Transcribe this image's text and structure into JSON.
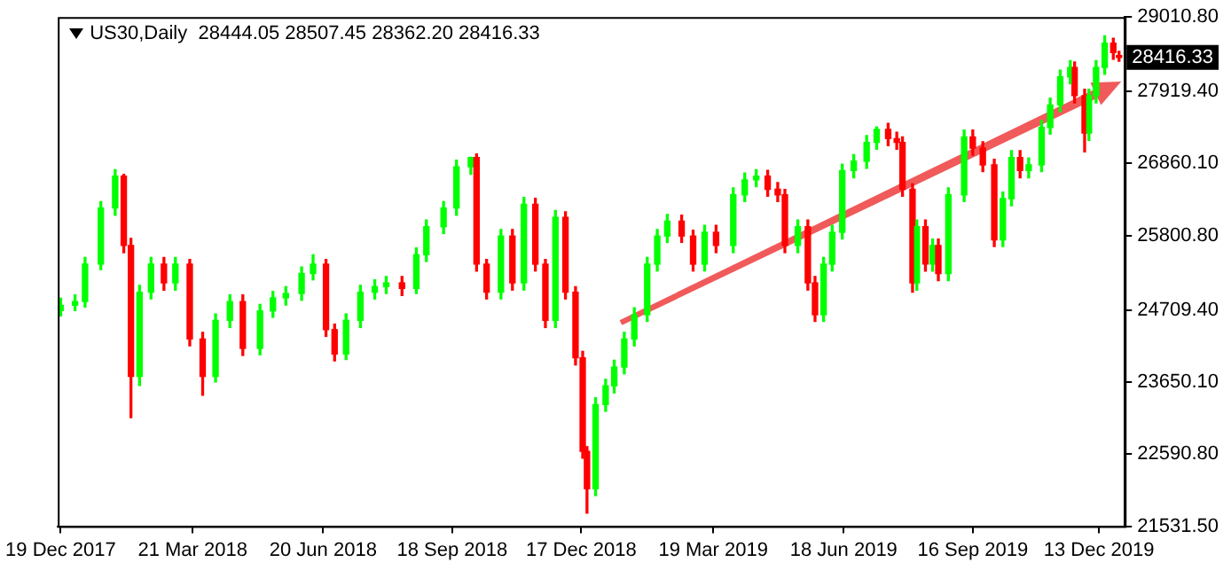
{
  "chart_data": {
    "type": "candlestick",
    "title": "US30,Daily  28444.05 28507.45 28362.20 28416.33",
    "x": [
      "2017-12-19",
      "2017-12-29",
      "2018-01-05",
      "2018-01-16",
      "2018-01-26",
      "2018-02-01",
      "2018-02-06",
      "2018-02-12",
      "2018-02-20",
      "2018-03-01",
      "2018-03-09",
      "2018-03-19",
      "2018-03-28",
      "2018-04-06",
      "2018-04-16",
      "2018-04-25",
      "2018-05-07",
      "2018-05-16",
      "2018-05-25",
      "2018-06-05",
      "2018-06-13",
      "2018-06-22",
      "2018-06-28",
      "2018-07-06",
      "2018-07-16",
      "2018-07-26",
      "2018-08-03",
      "2018-08-14",
      "2018-08-24",
      "2018-08-31",
      "2018-09-12",
      "2018-09-21",
      "2018-10-01",
      "2018-10-05",
      "2018-10-12",
      "2018-10-22",
      "2018-10-30",
      "2018-11-07",
      "2018-11-15",
      "2018-11-22",
      "2018-11-29",
      "2018-12-06",
      "2018-12-13",
      "2018-12-18",
      "2018-12-21",
      "2018-12-27",
      "2019-01-03",
      "2019-01-09",
      "2019-01-16",
      "2019-01-23",
      "2019-02-01",
      "2019-02-08",
      "2019-02-15",
      "2019-02-25",
      "2019-03-05",
      "2019-03-13",
      "2019-03-21",
      "2019-04-02",
      "2019-04-10",
      "2019-04-18",
      "2019-04-26",
      "2019-05-03",
      "2019-05-08",
      "2019-05-17",
      "2019-05-24",
      "2019-05-29",
      "2019-06-04",
      "2019-06-10",
      "2019-06-17",
      "2019-06-25",
      "2019-07-04",
      "2019-07-11",
      "2019-07-19",
      "2019-07-25",
      "2019-07-29",
      "2019-08-05",
      "2019-08-08",
      "2019-08-14",
      "2019-08-19",
      "2019-08-23",
      "2019-08-30",
      "2019-09-10",
      "2019-09-16",
      "2019-09-23",
      "2019-10-01",
      "2019-10-07",
      "2019-10-13",
      "2019-10-19",
      "2019-10-25",
      "2019-11-03",
      "2019-11-09",
      "2019-11-16",
      "2019-11-23",
      "2019-11-26",
      "2019-12-03",
      "2019-12-06",
      "2019-12-11",
      "2019-12-17",
      "2019-12-23",
      "2019-12-27"
    ],
    "ohlc": [
      [
        24700,
        24880,
        24620,
        24776
      ],
      [
        24776,
        24930,
        24700,
        24831
      ],
      [
        24831,
        25480,
        24750,
        25381
      ],
      [
        25381,
        26300,
        25300,
        26206
      ],
      [
        26206,
        26770,
        26100,
        26674
      ],
      [
        26674,
        26700,
        25550,
        25656
      ],
      [
        25656,
        25760,
        23126,
        23731
      ],
      [
        23731,
        25070,
        23600,
        24969
      ],
      [
        24969,
        25480,
        24870,
        25381
      ],
      [
        25381,
        25480,
        25000,
        25106
      ],
      [
        25106,
        25480,
        25000,
        25381
      ],
      [
        25381,
        25450,
        24180,
        24281
      ],
      [
        24281,
        24380,
        23456,
        23731
      ],
      [
        23731,
        24650,
        23650,
        24556
      ],
      [
        24556,
        24930,
        24450,
        24831
      ],
      [
        24831,
        24930,
        24040,
        24144
      ],
      [
        24144,
        24790,
        24050,
        24694
      ],
      [
        24694,
        24980,
        24600,
        24886
      ],
      [
        24886,
        25050,
        24780,
        24950
      ],
      [
        24950,
        25340,
        24850,
        25244
      ],
      [
        25244,
        25519,
        25150,
        25381
      ],
      [
        25381,
        25450,
        24320,
        24419
      ],
      [
        24419,
        24500,
        23960,
        24061
      ],
      [
        24061,
        24650,
        23980,
        24556
      ],
      [
        24556,
        25070,
        24450,
        24969
      ],
      [
        24969,
        25150,
        24870,
        25051
      ],
      [
        25051,
        25200,
        24950,
        25106
      ],
      [
        25106,
        25200,
        24920,
        25024
      ],
      [
        25024,
        25620,
        24950,
        25519
      ],
      [
        25519,
        26030,
        25420,
        25931
      ],
      [
        25931,
        26300,
        25830,
        26206
      ],
      [
        26206,
        26910,
        26100,
        26811
      ],
      [
        26811,
        26951,
        26700,
        26949
      ],
      [
        26949,
        27000,
        25280,
        25381
      ],
      [
        25381,
        25450,
        24870,
        24969
      ],
      [
        24969,
        25890,
        24870,
        25794
      ],
      [
        25794,
        25890,
        25000,
        25106
      ],
      [
        25106,
        26360,
        25000,
        26261
      ],
      [
        26261,
        26350,
        25280,
        25381
      ],
      [
        25381,
        25450,
        24450,
        24556
      ],
      [
        24556,
        26170,
        24450,
        26069
      ],
      [
        26069,
        26150,
        24870,
        24969
      ],
      [
        24969,
        25050,
        23900,
        24006
      ],
      [
        24006,
        24100,
        22530,
        22631
      ],
      [
        22631,
        22700,
        21724,
        22081
      ],
      [
        22081,
        23420,
        21980,
        23319
      ],
      [
        23319,
        23690,
        23220,
        23594
      ],
      [
        23594,
        23970,
        23490,
        23869
      ],
      [
        23869,
        24380,
        23770,
        24281
      ],
      [
        24281,
        24740,
        24180,
        24638
      ],
      [
        24638,
        25480,
        24540,
        25381
      ],
      [
        25381,
        25890,
        25280,
        25794
      ],
      [
        25794,
        26110,
        25700,
        26014
      ],
      [
        26014,
        26100,
        25700,
        25794
      ],
      [
        25794,
        25880,
        25280,
        25381
      ],
      [
        25381,
        25950,
        25280,
        25849
      ],
      [
        25849,
        25950,
        25550,
        25656
      ],
      [
        25656,
        26500,
        25550,
        26399
      ],
      [
        26399,
        26720,
        26300,
        26619
      ],
      [
        26619,
        26770,
        26520,
        26674
      ],
      [
        26674,
        26760,
        26380,
        26481
      ],
      [
        26481,
        26580,
        26300,
        26399
      ],
      [
        26399,
        26480,
        25550,
        25656
      ],
      [
        25656,
        26030,
        25550,
        25931
      ],
      [
        25931,
        26030,
        25000,
        25106
      ],
      [
        25106,
        25200,
        24540,
        24638
      ],
      [
        24638,
        25480,
        24540,
        25381
      ],
      [
        25381,
        25950,
        25280,
        25849
      ],
      [
        25849,
        26850,
        25750,
        26756
      ],
      [
        26756,
        26990,
        26650,
        26894
      ],
      [
        26894,
        27270,
        26790,
        27169
      ],
      [
        27169,
        27398,
        27070,
        27361
      ],
      [
        27361,
        27450,
        27120,
        27224
      ],
      [
        27224,
        27320,
        27070,
        27169
      ],
      [
        27169,
        27250,
        26380,
        26481
      ],
      [
        26481,
        26560,
        24969,
        25106
      ],
      [
        25106,
        26030,
        25000,
        25931
      ],
      [
        25931,
        26030,
        25280,
        25381
      ],
      [
        25381,
        25750,
        25280,
        25656
      ],
      [
        25656,
        25750,
        25140,
        25244
      ],
      [
        25244,
        26500,
        25140,
        26399
      ],
      [
        26399,
        27350,
        26300,
        27251
      ],
      [
        27251,
        27350,
        26980,
        27086
      ],
      [
        27086,
        27180,
        26740,
        26839
      ],
      [
        26839,
        26920,
        25640,
        25738
      ],
      [
        25738,
        26440,
        25640,
        26344
      ],
      [
        26344,
        27050,
        26240,
        26949
      ],
      [
        26949,
        27050,
        26650,
        26756
      ],
      [
        26756,
        26940,
        26650,
        26839
      ],
      [
        26839,
        27490,
        26740,
        27389
      ],
      [
        27389,
        27820,
        27290,
        27719
      ],
      [
        27719,
        28230,
        27620,
        28131
      ],
      [
        28131,
        28370,
        28030,
        28269
      ],
      [
        28269,
        28350,
        27750,
        27856
      ],
      [
        27856,
        27950,
        27031,
        27306
      ],
      [
        27306,
        27950,
        27200,
        27856
      ],
      [
        27856,
        28370,
        27750,
        28269
      ],
      [
        28269,
        28736,
        28170,
        28626
      ],
      [
        28626,
        28700,
        28390,
        28489
      ],
      [
        28444.05,
        28507.45,
        28362.2,
        28416.33
      ]
    ],
    "colors": [
      "#00ff00",
      "#00ff00",
      "#00ff00",
      "#00ff00",
      "#00ff00",
      "#ff0000",
      "#ff0000",
      "#00ff00",
      "#00ff00",
      "#ff0000",
      "#00ff00",
      "#ff0000",
      "#ff0000",
      "#00ff00",
      "#00ff00",
      "#ff0000",
      "#00ff00",
      "#00ff00",
      "#00ff00",
      "#00ff00",
      "#00ff00",
      "#ff0000",
      "#ff0000",
      "#00ff00",
      "#00ff00",
      "#00ff00",
      "#00ff00",
      "#ff0000",
      "#00ff00",
      "#00ff00",
      "#00ff00",
      "#00ff00",
      "#00ff00",
      "#ff0000",
      "#ff0000",
      "#00ff00",
      "#ff0000",
      "#00ff00",
      "#ff0000",
      "#ff0000",
      "#00ff00",
      "#ff0000",
      "#ff0000",
      "#ff0000",
      "#ff0000",
      "#00ff00",
      "#00ff00",
      "#00ff00",
      "#00ff00",
      "#00ff00",
      "#00ff00",
      "#00ff00",
      "#00ff00",
      "#ff0000",
      "#ff0000",
      "#00ff00",
      "#ff0000",
      "#00ff00",
      "#00ff00",
      "#00ff00",
      "#ff0000",
      "#ff0000",
      "#ff0000",
      "#00ff00",
      "#ff0000",
      "#ff0000",
      "#00ff00",
      "#00ff00",
      "#00ff00",
      "#00ff00",
      "#00ff00",
      "#00ff00",
      "#ff0000",
      "#ff0000",
      "#ff0000",
      "#ff0000",
      "#00ff00",
      "#ff0000",
      "#00ff00",
      "#ff0000",
      "#00ff00",
      "#00ff00",
      "#ff0000",
      "#ff0000",
      "#ff0000",
      "#00ff00",
      "#00ff00",
      "#ff0000",
      "#00ff00",
      "#00ff00",
      "#00ff00",
      "#00ff00",
      "#00ff00",
      "#ff0000",
      "#ff0000",
      "#00ff00",
      "#00ff00",
      "#00ff00",
      "#ff0000",
      "#ff0000"
    ],
    "xlim": [
      "2017-12-17",
      "2019-12-31"
    ],
    "xticks": [
      {
        "value": "2017-12-19",
        "label": "19 Dec 2017"
      },
      {
        "value": "2018-03-21",
        "label": "21 Mar 2018"
      },
      {
        "value": "2018-06-20",
        "label": "20 Jun 2018"
      },
      {
        "value": "2018-09-18",
        "label": "18 Sep 2018"
      },
      {
        "value": "2018-12-17",
        "label": "17 Dec 2018"
      },
      {
        "value": "2019-03-19",
        "label": "19 Mar 2019"
      },
      {
        "value": "2019-06-18",
        "label": "18 Jun 2019"
      },
      {
        "value": "2019-09-16",
        "label": "16 Sep 2019"
      },
      {
        "value": "2019-12-13",
        "label": "13 Dec 2019"
      }
    ],
    "ylim": [
      21531.5,
      29010.8
    ],
    "yticks": [
      {
        "value": 21531.5,
        "label": "21531.50"
      },
      {
        "value": 22590.8,
        "label": "22590.80"
      },
      {
        "value": 23650.1,
        "label": "23650.10"
      },
      {
        "value": 24709.4,
        "label": "24709.40"
      },
      {
        "value": 25800.8,
        "label": "25800.80"
      },
      {
        "value": 26860.1,
        "label": "26860.10"
      },
      {
        "value": 27919.4,
        "label": "27919.40"
      },
      {
        "value": 29010.8,
        "label": "29010.80"
      }
    ],
    "annotations": [
      {
        "text": "28416.33",
        "x": "2019-12-31",
        "y": 28416.33
      }
    ]
  }
}
